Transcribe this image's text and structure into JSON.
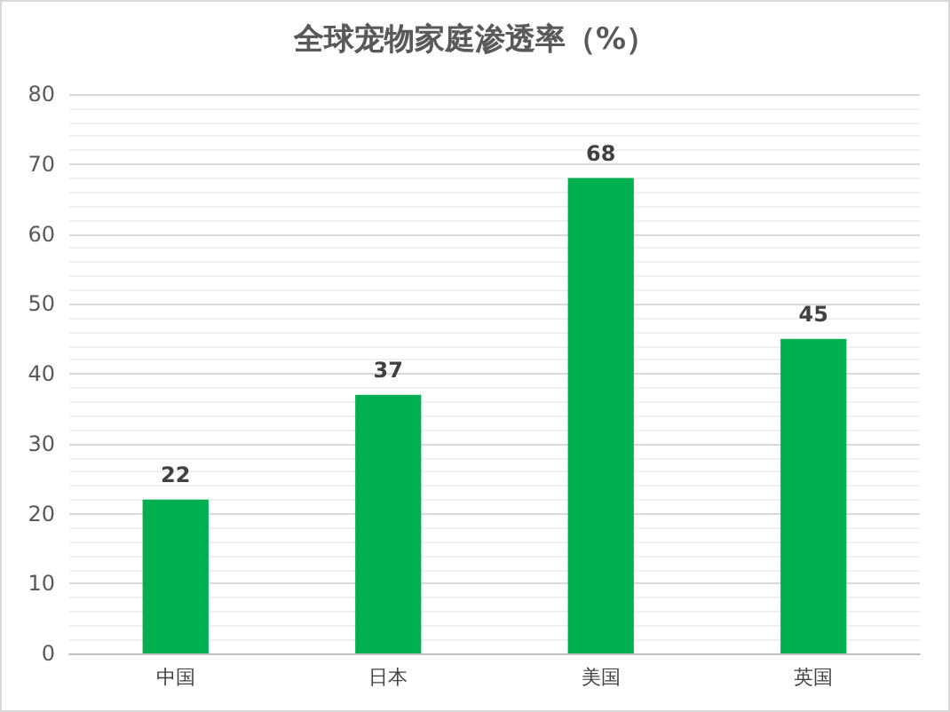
{
  "chart_data": {
    "type": "bar",
    "title": "全球宠物家庭渗透率（%）",
    "categories": [
      "中国",
      "日本",
      "美国",
      "英国"
    ],
    "values": [
      22,
      37,
      68,
      45
    ],
    "color": "#00b050",
    "ylim": [
      0,
      80
    ],
    "yticks": [
      0,
      10,
      20,
      30,
      40,
      50,
      60,
      70,
      80
    ],
    "grid": "y",
    "data_labels": true
  }
}
